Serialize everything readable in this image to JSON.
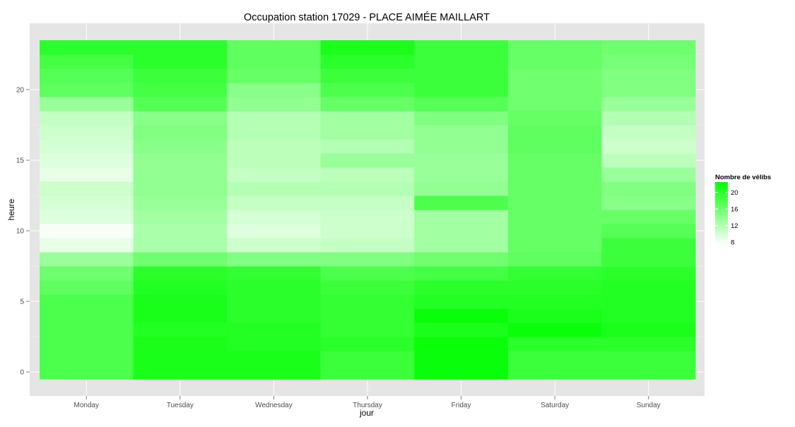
{
  "chart_data": {
    "type": "heatmap",
    "title": "Occupation station 17029 - PLACE AIMÉE MAILLART",
    "xlabel": "jour",
    "ylabel": "heure",
    "x_categories": [
      "Monday",
      "Tuesday",
      "Wednesday",
      "Thursday",
      "Friday",
      "Saturday",
      "Sunday"
    ],
    "y_hours": [
      0,
      1,
      2,
      3,
      4,
      5,
      6,
      7,
      8,
      9,
      10,
      11,
      12,
      13,
      14,
      15,
      16,
      17,
      18,
      19,
      20,
      21,
      22,
      23
    ],
    "y_ticks": [
      0,
      5,
      10,
      15,
      20
    ],
    "y_tick_labels": [
      "0",
      "5",
      "10",
      "15",
      "20"
    ],
    "values": [
      [
        18,
        21,
        21,
        19,
        22,
        19,
        19
      ],
      [
        18,
        21,
        21,
        19,
        22,
        19,
        19
      ],
      [
        18,
        21,
        20.5,
        20,
        22,
        20,
        20
      ],
      [
        18,
        20.5,
        20.5,
        19.5,
        21,
        22,
        21
      ],
      [
        18,
        21,
        20,
        19.5,
        22,
        21,
        20.5
      ],
      [
        18,
        21,
        20,
        19.5,
        20.5,
        20.5,
        20.5
      ],
      [
        17,
        20.5,
        20,
        19,
        20,
        20,
        20.5
      ],
      [
        16,
        20,
        19.5,
        18,
        18.5,
        19.5,
        20
      ],
      [
        13.5,
        16,
        15,
        15,
        16,
        17,
        19
      ],
      [
        9,
        12.5,
        10.5,
        11,
        13,
        16.5,
        19
      ],
      [
        8,
        12.5,
        9.5,
        10.5,
        13,
        16.5,
        17.5
      ],
      [
        9.5,
        13,
        10,
        10.5,
        13,
        16.5,
        16.5
      ],
      [
        10,
        13.5,
        11,
        11,
        18,
        16.5,
        14.5
      ],
      [
        10.5,
        14,
        12,
        12,
        14,
        16.5,
        15
      ],
      [
        9,
        14,
        11,
        11.5,
        13.5,
        16.5,
        13.5
      ],
      [
        9.5,
        14,
        11.5,
        13.5,
        13.5,
        16.5,
        11.5
      ],
      [
        10,
        14.5,
        11.5,
        12,
        14,
        17,
        10.5
      ],
      [
        10.5,
        15,
        12,
        13,
        14,
        17,
        11
      ],
      [
        11,
        14.5,
        12,
        13,
        15,
        16.5,
        12
      ],
      [
        13.5,
        17.5,
        14,
        16.5,
        17.5,
        16,
        13.5
      ],
      [
        17,
        18.5,
        14.5,
        18,
        19,
        16,
        15
      ],
      [
        17.5,
        19,
        16.5,
        19,
        19,
        16,
        15
      ],
      [
        18.5,
        20,
        17,
        20,
        19,
        16.5,
        15.5
      ],
      [
        20,
        20,
        17,
        21,
        19,
        16.5,
        16
      ]
    ],
    "color_scale": {
      "low": "#ffffff",
      "high": "#00ff00",
      "domain": [
        7.5,
        22.5
      ]
    },
    "legend": {
      "title": "Nombre de vélibs",
      "ticks": [
        8,
        12,
        16,
        20
      ],
      "tick_labels": [
        "8",
        "12",
        "16",
        "20"
      ],
      "position": "right"
    },
    "grid": true,
    "panel_background": "#e5e5e5",
    "grid_color": "#ffffff"
  }
}
